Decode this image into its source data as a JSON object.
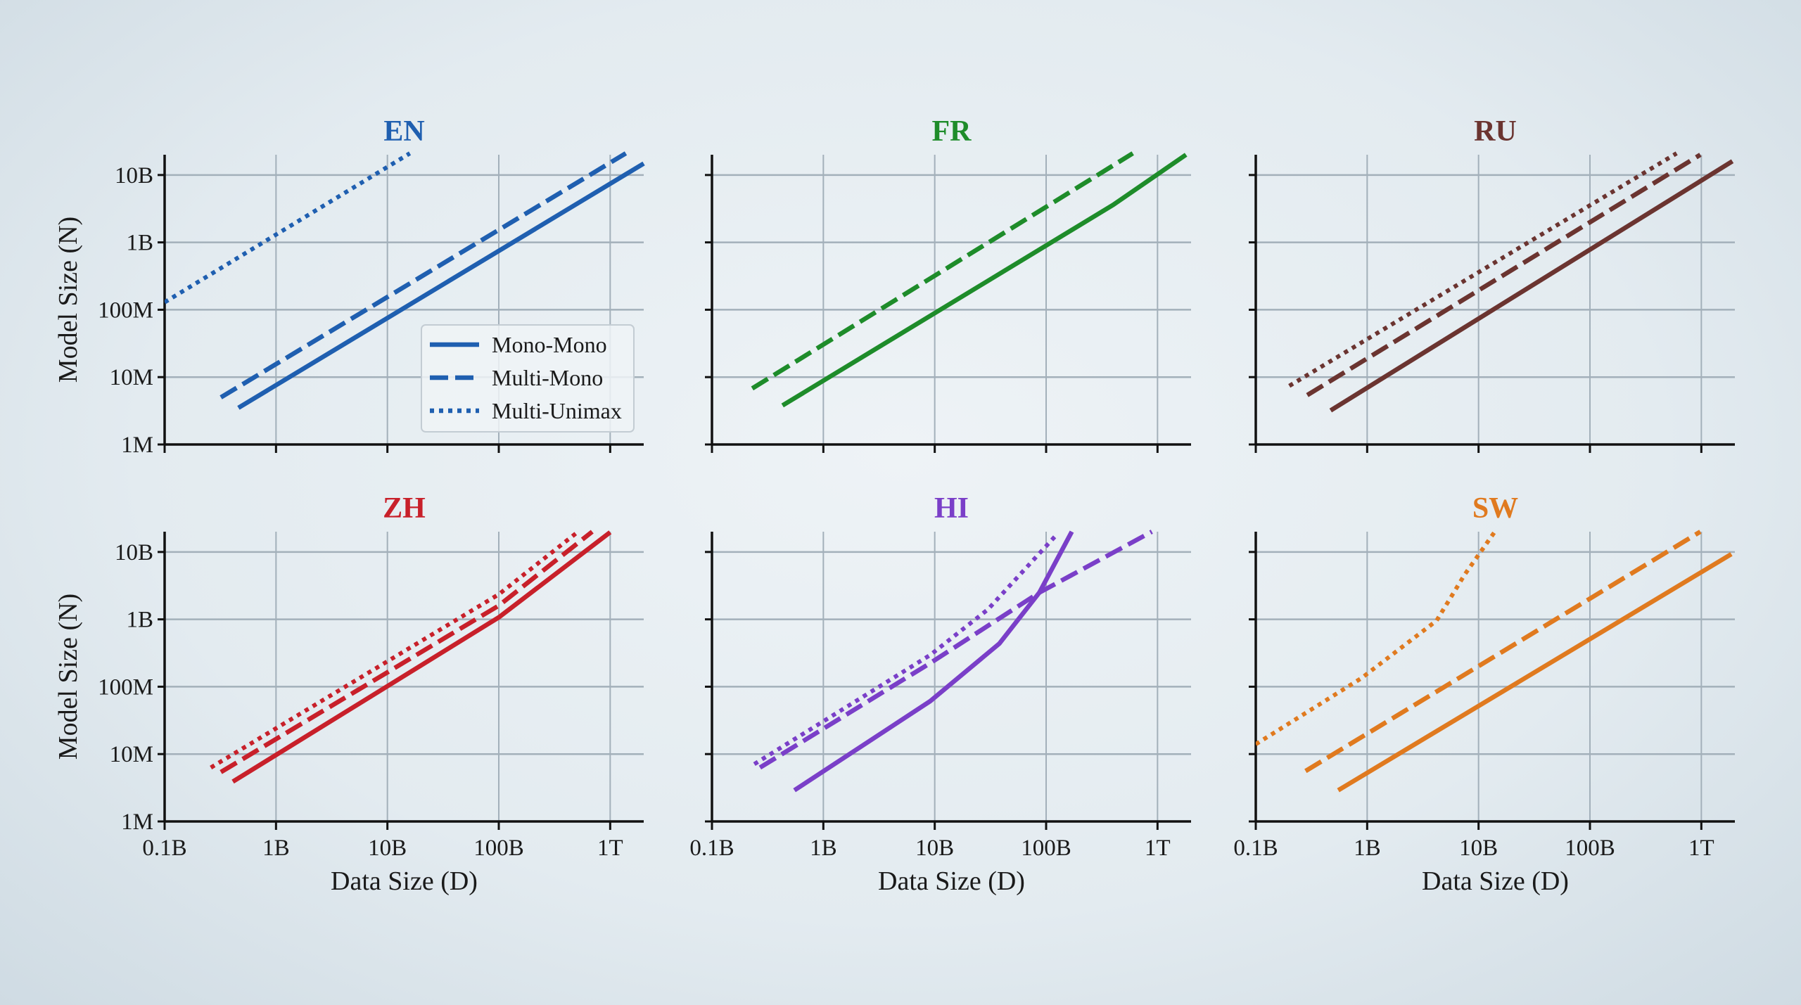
{
  "chart_data": [
    {
      "type": "line",
      "title": "EN",
      "color": "#1f5fb0",
      "xlabel": "",
      "ylabel": "Model Size (N)",
      "xscale": "log",
      "yscale": "log",
      "xlim": [
        100000000.0,
        2000000000000.0
      ],
      "ylim": [
        1000000.0,
        20000000000.0
      ],
      "grid": true,
      "legend": {
        "placement": "lower-right",
        "entries": [
          "Mono-Mono",
          "Multi-Mono",
          "Multi-Unimax"
        ]
      },
      "series": [
        {
          "name": "Mono-Mono",
          "style": "solid",
          "points": [
            [
              460000000.0,
              3500000.0
            ],
            [
              2000000000000.0,
              14800000000.0
            ]
          ]
        },
        {
          "name": "Multi-Mono",
          "style": "dashed",
          "points": [
            [
              320000000.0,
              5000000.0
            ],
            [
              1380000000000.0,
              21000000000.0
            ]
          ]
        },
        {
          "name": "Multi-Unimax",
          "style": "dotted",
          "points": [
            [
              100000000.0,
              129000000.0
            ],
            [
              15900000000.0,
              21000000000.0
            ]
          ]
        }
      ]
    },
    {
      "type": "line",
      "title": "FR",
      "color": "#1e8c2a",
      "xlabel": "",
      "ylabel": "",
      "xscale": "log",
      "yscale": "log",
      "xlim": [
        100000000.0,
        2000000000000.0
      ],
      "ylim": [
        1000000.0,
        20000000000.0
      ],
      "grid": true,
      "series": [
        {
          "name": "Mono-Mono",
          "style": "solid",
          "points": [
            [
              430000000.0,
              3800000.0
            ],
            [
              400000000000.0,
              3600000000.0
            ],
            [
              1800000000000.0,
              20000000000.0
            ]
          ]
        },
        {
          "name": "Multi-Mono",
          "style": "dashed",
          "points": [
            [
              230000000.0,
              6800000.0
            ],
            [
              600000000000.0,
              21000000000.0
            ]
          ]
        }
      ]
    },
    {
      "type": "line",
      "title": "RU",
      "color": "#6b3430",
      "xlabel": "",
      "ylabel": "",
      "xscale": "log",
      "yscale": "log",
      "xlim": [
        100000000.0,
        2000000000000.0
      ],
      "ylim": [
        1000000.0,
        20000000000.0
      ],
      "grid": true,
      "series": [
        {
          "name": "Mono-Mono",
          "style": "solid",
          "points": [
            [
              470000000.0,
              3200000.0
            ],
            [
              1900000000000.0,
              16000000000.0
            ]
          ]
        },
        {
          "name": "Multi-Mono",
          "style": "dashed",
          "points": [
            [
              290000000.0,
              5400000.0
            ],
            [
              980000000000.0,
              20000000000.0
            ]
          ]
        },
        {
          "name": "Multi-Unimax",
          "style": "dotted",
          "points": [
            [
              200000000.0,
              7400000.0
            ],
            [
              600000000000.0,
              21000000000.0
            ]
          ]
        }
      ]
    },
    {
      "type": "line",
      "title": "ZH",
      "color": "#c8202a",
      "xlabel": "Data Size (D)",
      "ylabel": "Model Size (N)",
      "xscale": "log",
      "yscale": "log",
      "xlim": [
        100000000.0,
        2000000000000.0
      ],
      "ylim": [
        1000000.0,
        20000000000.0
      ],
      "grid": true,
      "series": [
        {
          "name": "Mono-Mono",
          "style": "solid",
          "points": [
            [
              410000000.0,
              3900000.0
            ],
            [
              100000000000.0,
              1070000000.0
            ],
            [
              1000000000000.0,
              19600000000.0
            ]
          ]
        },
        {
          "name": "Multi-Mono",
          "style": "dashed",
          "points": [
            [
              320000000.0,
              5400000.0
            ],
            [
              100000000000.0,
              1600000000.0
            ],
            [
              690000000000.0,
              20000000000.0
            ]
          ]
        },
        {
          "name": "Multi-Unimax",
          "style": "dotted",
          "points": [
            [
              260000000.0,
              6300000.0
            ],
            [
              100000000000.0,
              2350000000.0
            ],
            [
              515000000000.0,
              20000000000.0
            ]
          ]
        }
      ]
    },
    {
      "type": "line",
      "title": "HI",
      "color": "#7a3fc8",
      "xlabel": "Data Size (D)",
      "ylabel": "",
      "xscale": "log",
      "yscale": "log",
      "xlim": [
        100000000.0,
        2000000000000.0
      ],
      "ylim": [
        1000000.0,
        20000000000.0
      ],
      "grid": true,
      "series": [
        {
          "name": "Mono-Mono",
          "style": "solid",
          "points": [
            [
              550000000.0,
              2900000.0
            ],
            [
              9100000000.0,
              61000000.0
            ],
            [
              38000000000.0,
              437000000.0
            ],
            [
              87000000000.0,
              2500000000.0
            ],
            [
              170000000000.0,
              20000000000.0
            ]
          ]
        },
        {
          "name": "Multi-Mono",
          "style": "dashed",
          "points": [
            [
              270000000.0,
              6300000.0
            ],
            [
              9100000000.0,
              224000000.0
            ],
            [
              87000000000.0,
              2500000000.0
            ],
            [
              890000000000.0,
              20000000000.0
            ]
          ]
        },
        {
          "name": "Multi-Unimax",
          "style": "dotted",
          "points": [
            [
              240000000.0,
              7100000.0
            ],
            [
              9100000000.0,
              295000000.0
            ],
            [
              30000000000.0,
              1400000000.0
            ],
            [
              124000000000.0,
              18000000000.0
            ]
          ]
        }
      ]
    },
    {
      "type": "line",
      "title": "SW",
      "color": "#e07a1f",
      "xlabel": "Data Size (D)",
      "ylabel": "",
      "xscale": "log",
      "yscale": "log",
      "xlim": [
        100000000.0,
        2000000000000.0
      ],
      "ylim": [
        1000000.0,
        20000000000.0
      ],
      "grid": true,
      "series": [
        {
          "name": "Mono-Mono",
          "style": "solid",
          "points": [
            [
              550000000.0,
              2900000.0
            ],
            [
              1860000000000.0,
              9300000000.0
            ]
          ]
        },
        {
          "name": "Multi-Mono",
          "style": "dashed",
          "points": [
            [
              280000000.0,
              5600000.0
            ],
            [
              980000000000.0,
              20000000000.0
            ]
          ]
        },
        {
          "name": "Multi-Unimax",
          "style": "dotted",
          "points": [
            [
              100000000.0,
              14000000.0
            ],
            [
              890000000.0,
              134000000.0
            ],
            [
              4200000000.0,
              955000000.0
            ],
            [
              7500000000.0,
              4600000000.0
            ],
            [
              14000000000.0,
              20000000000.0
            ]
          ]
        }
      ]
    }
  ],
  "axes": {
    "xticks": [
      {
        "value": 100000000.0,
        "label": "0.1B"
      },
      {
        "value": 1000000000.0,
        "label": "1B"
      },
      {
        "value": 10000000000.0,
        "label": "10B"
      },
      {
        "value": 100000000000.0,
        "label": "100B"
      },
      {
        "value": 1000000000000.0,
        "label": "1T"
      }
    ],
    "yticks": [
      {
        "value": 1000000.0,
        "label": "1M"
      },
      {
        "value": 10000000.0,
        "label": "10M"
      },
      {
        "value": 100000000.0,
        "label": "100M"
      },
      {
        "value": 1000000000.0,
        "label": "1B"
      },
      {
        "value": 10000000000.0,
        "label": "10B"
      }
    ]
  }
}
